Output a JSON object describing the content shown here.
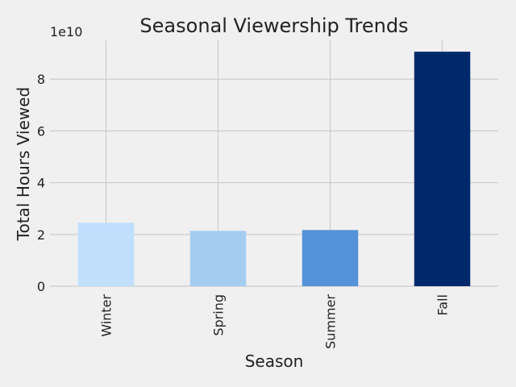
{
  "chart_data": {
    "type": "bar",
    "title": "Seasonal Viewership Trends",
    "xlabel": "Season",
    "ylabel": "Total Hours Viewed",
    "y_offset_label": "1e10",
    "categories": [
      "Winter",
      "Spring",
      "Summer",
      "Fall"
    ],
    "values": [
      24500000000,
      21400000000,
      21700000000,
      90600000000
    ],
    "colors": [
      "#bfdffd",
      "#a5cdf1",
      "#5592d9",
      "#00296b"
    ],
    "ylim": [
      0,
      95000000000
    ],
    "yticks": [
      0,
      20000000000,
      40000000000,
      60000000000,
      80000000000
    ],
    "ytick_labels": [
      "0",
      "2",
      "4",
      "6",
      "8"
    ],
    "grid": true
  }
}
